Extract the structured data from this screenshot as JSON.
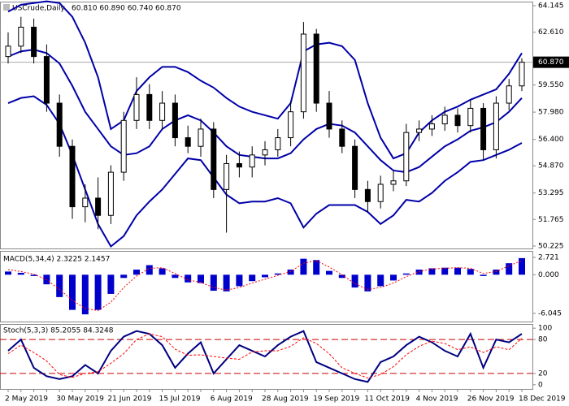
{
  "chart_data": [
    {
      "type": "candlestick",
      "title": "USCrude,Daily",
      "ohlc_label": "60.810 60.890 60.740 60.870",
      "categories": [
        "2 May 2019",
        null,
        null,
        null,
        "30 May 2019",
        null,
        null,
        null,
        "21 Jun 2019",
        null,
        null,
        null,
        "15 Jul 2019",
        null,
        null,
        null,
        "6 Aug 2019",
        null,
        null,
        null,
        "28 Aug 2019",
        null,
        null,
        null,
        "19 Sep 2019",
        null,
        null,
        null,
        "11 Oct 2019",
        null,
        null,
        null,
        "4 Nov 2019",
        null,
        null,
        null,
        "26 Nov 2019",
        null,
        null,
        null,
        "18 Dec 2019"
      ],
      "open": [
        61.2,
        61.8,
        62.9,
        61.2,
        58.5,
        56.0,
        52.5,
        53.0,
        52.0,
        54.5,
        57.5,
        59.0,
        57.5,
        58.5,
        56.5,
        56.0,
        57.0,
        53.5,
        55.0,
        54.8,
        55.5,
        55.8,
        56.5,
        58.0,
        62.5,
        58.5,
        57.0,
        56.0,
        53.5,
        52.8,
        53.8,
        54.0,
        56.8,
        57.0,
        57.3,
        57.8,
        57.2,
        58.2,
        55.8,
        58.5,
        59.5
      ],
      "high": [
        62.6,
        63.5,
        63.4,
        61.9,
        59.0,
        56.4,
        53.8,
        54.2,
        54.9,
        58.0,
        60.0,
        59.6,
        59.2,
        59.0,
        57.2,
        57.6,
        57.4,
        55.5,
        55.7,
        56.0,
        56.3,
        57.0,
        58.6,
        63.2,
        62.8,
        59.2,
        57.5,
        56.4,
        54.0,
        54.3,
        54.6,
        57.3,
        57.5,
        57.8,
        58.3,
        58.2,
        58.7,
        58.5,
        58.9,
        59.9,
        61.1
      ],
      "low": [
        60.8,
        61.4,
        60.8,
        58.0,
        55.4,
        51.8,
        51.6,
        51.2,
        51.5,
        54.0,
        57.0,
        57.0,
        57.0,
        56.0,
        55.6,
        55.4,
        53.0,
        51.0,
        54.2,
        54.2,
        54.9,
        55.4,
        56.0,
        57.6,
        58.0,
        56.5,
        55.6,
        53.0,
        52.2,
        52.4,
        53.4,
        53.7,
        56.3,
        56.6,
        56.9,
        56.8,
        56.8,
        55.2,
        55.3,
        58.1,
        59.2
      ],
      "close": [
        61.8,
        62.9,
        61.2,
        58.5,
        56.0,
        52.5,
        53.0,
        52.0,
        54.5,
        57.5,
        59.0,
        57.5,
        58.5,
        56.5,
        56.0,
        57.0,
        53.5,
        55.0,
        54.8,
        55.5,
        55.8,
        56.5,
        58.0,
        62.5,
        58.5,
        57.0,
        56.0,
        53.5,
        52.8,
        53.8,
        54.0,
        56.8,
        57.0,
        57.3,
        57.8,
        57.2,
        58.2,
        55.8,
        58.5,
        59.5,
        60.87
      ],
      "color_up": "#ffffff",
      "color_down": "#000000",
      "bands": {
        "color": "#0000a8",
        "upper": [
          63.8,
          64.2,
          64.3,
          64.4,
          64.3,
          63.5,
          62.0,
          60.0,
          57.0,
          57.5,
          59.2,
          60.0,
          60.6,
          60.6,
          60.3,
          59.8,
          59.4,
          58.8,
          58.3,
          58.0,
          57.8,
          57.6,
          58.5,
          61.5,
          61.9,
          62.0,
          61.8,
          61.0,
          58.5,
          56.5,
          55.3,
          55.6,
          56.8,
          57.5,
          58.0,
          58.3,
          58.7,
          59.0,
          59.3,
          60.2,
          61.4
        ],
        "middle": [
          61.2,
          61.5,
          61.6,
          61.4,
          60.8,
          59.5,
          58.0,
          57.0,
          56.0,
          55.5,
          55.6,
          56.0,
          57.0,
          57.5,
          57.8,
          57.5,
          56.8,
          56.0,
          55.5,
          55.4,
          55.3,
          55.3,
          55.6,
          56.4,
          57.0,
          57.3,
          57.2,
          56.8,
          56.0,
          55.2,
          54.6,
          54.5,
          54.8,
          55.4,
          56.0,
          56.4,
          56.9,
          57.1,
          57.4,
          58.0,
          58.8
        ],
        "lower": [
          58.5,
          58.8,
          58.9,
          58.4,
          57.3,
          55.5,
          53.5,
          51.5,
          50.2,
          50.8,
          52.0,
          52.8,
          53.5,
          54.4,
          55.3,
          55.2,
          54.2,
          53.2,
          52.7,
          52.8,
          52.8,
          53.0,
          52.7,
          51.3,
          52.1,
          52.6,
          52.6,
          52.6,
          52.2,
          51.5,
          52.0,
          52.9,
          52.8,
          53.3,
          54.0,
          54.5,
          55.1,
          55.2,
          55.5,
          55.8,
          56.2
        ]
      },
      "last_price": {
        "value": 60.87,
        "label": "60.870"
      },
      "ylim": [
        50.225,
        64.145
      ],
      "yticks": [
        64.145,
        {
          "value": 62.61,
          "label": "62.610"
        },
        {
          "value": 59.55,
          "label": "59.550"
        },
        {
          "value": 57.98,
          "label": "57.980"
        },
        {
          "value": 56.4,
          "label": "56.400"
        },
        {
          "value": 54.87,
          "label": "54.870"
        },
        53.295,
        51.765,
        50.225
      ]
    },
    {
      "type": "macd",
      "title": "MACD(5,34,4) 2.3225 2.1457",
      "histogram": {
        "color": "#0000cc",
        "values": [
          0.5,
          0.3,
          -0.2,
          -1.5,
          -3.5,
          -5.5,
          -6.2,
          -5.5,
          -3.0,
          -0.5,
          0.8,
          1.5,
          1.0,
          -0.5,
          -1.2,
          -1.3,
          -2.5,
          -2.6,
          -1.8,
          -1.0,
          -0.4,
          0.2,
          0.8,
          2.5,
          2.3,
          0.6,
          -0.5,
          -2.0,
          -2.6,
          -1.8,
          -0.9,
          0.2,
          0.8,
          1.0,
          1.1,
          1.1,
          0.9,
          -0.2,
          0.8,
          1.8,
          2.6
        ]
      },
      "signal": {
        "color": "#ff0000",
        "values": [
          0.8,
          0.5,
          0.1,
          -0.8,
          -2.3,
          -4.0,
          -5.3,
          -5.6,
          -4.3,
          -2.0,
          -0.2,
          1.0,
          1.1,
          0.2,
          -0.8,
          -1.2,
          -2.0,
          -2.4,
          -2.0,
          -1.3,
          -0.7,
          -0.1,
          0.5,
          1.8,
          2.2,
          1.2,
          0.0,
          -1.4,
          -2.3,
          -2.0,
          -1.3,
          -0.3,
          0.5,
          0.9,
          1.0,
          1.1,
          1.0,
          0.2,
          0.5,
          1.4,
          2.2
        ]
      },
      "ylim": [
        -7.2,
        3.6
      ],
      "yticks": [
        2.721,
        {
          "value": 0,
          "label": "0.000"
        },
        -6.045
      ]
    },
    {
      "type": "stochastic",
      "title": "Stoch(5,3,3) 85.2055 84.3248",
      "main": {
        "color": "#000080",
        "values": [
          60,
          80,
          30,
          15,
          10,
          15,
          35,
          20,
          60,
          85,
          95,
          90,
          70,
          30,
          55,
          75,
          20,
          45,
          70,
          60,
          50,
          70,
          85,
          95,
          40,
          30,
          20,
          10,
          5,
          40,
          50,
          70,
          85,
          75,
          60,
          50,
          90,
          30,
          80,
          75,
          90
        ]
      },
      "signal": {
        "color": "#ff0000",
        "values": [
          55,
          70,
          57,
          42,
          18,
          13,
          20,
          23,
          38,
          55,
          80,
          90,
          85,
          63,
          52,
          53,
          50,
          47,
          45,
          58,
          60,
          60,
          68,
          83,
          73,
          55,
          30,
          20,
          12,
          18,
          32,
          53,
          68,
          77,
          73,
          62,
          67,
          57,
          67,
          62,
          82
        ]
      },
      "levels": [
        80,
        20
      ],
      "ylim": [
        -6,
        106
      ],
      "yticks": [
        100,
        80,
        20,
        0
      ]
    }
  ]
}
